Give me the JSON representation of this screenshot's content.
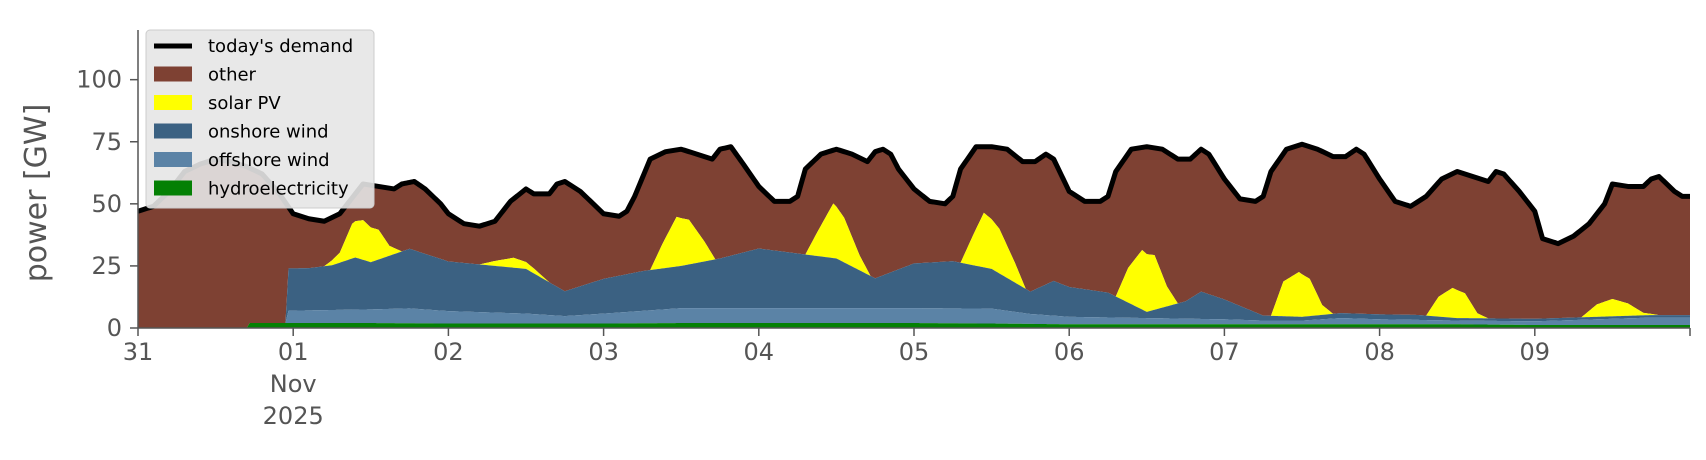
{
  "chart_data": {
    "type": "area",
    "stacked": true,
    "ylabel": "power [GW]",
    "xlabel": "",
    "ylim": [
      0,
      120
    ],
    "yticks": [
      0,
      25,
      50,
      75,
      100
    ],
    "xlim": [
      0,
      10
    ],
    "x_tick_positions": [
      0,
      1,
      2,
      3,
      4,
      5,
      6,
      7,
      8,
      9
    ],
    "x_tick_labels": [
      "31",
      "01",
      "02",
      "03",
      "04",
      "05",
      "06",
      "07",
      "08",
      "09"
    ],
    "x_secondary_labels": {
      "position": 1,
      "lines": [
        "Nov",
        "2025"
      ]
    },
    "x_units": "days since 31 Oct 2025",
    "grid": false,
    "legend_position": "top-left",
    "legend": [
      "today's demand",
      "other",
      "solar PV",
      "onshore wind",
      "offshore wind",
      "hydroelectricity"
    ],
    "colors": {
      "demand": "#000000",
      "other": "#7e4133",
      "solar": "#ffff00",
      "onshore": "#3b6182",
      "offshore": "#5b83a6",
      "hydro": "#048004",
      "axis": "#555555"
    },
    "series": [
      {
        "name": "hydroelectricity",
        "color": "#048004",
        "points": [
          [
            0,
            0
          ],
          [
            0.7,
            0
          ],
          [
            0.72,
            2
          ],
          [
            1.0,
            2
          ],
          [
            1.5,
            2
          ],
          [
            2.0,
            1.8
          ],
          [
            2.5,
            1.8
          ],
          [
            3.0,
            1.8
          ],
          [
            3.5,
            2
          ],
          [
            4.0,
            2
          ],
          [
            4.5,
            2
          ],
          [
            5.0,
            2
          ],
          [
            5.5,
            1.8
          ],
          [
            6.0,
            1.5
          ],
          [
            6.5,
            1.5
          ],
          [
            7.0,
            1.5
          ],
          [
            7.5,
            1.5
          ],
          [
            8.0,
            1.5
          ],
          [
            8.5,
            1.5
          ],
          [
            9.0,
            1.2
          ],
          [
            9.5,
            1.2
          ],
          [
            9.95,
            1.2
          ]
        ]
      },
      {
        "name": "offshore wind",
        "color": "#5b83a6",
        "points": [
          [
            0,
            0
          ],
          [
            0.7,
            0
          ],
          [
            0.72,
            0
          ],
          [
            0.95,
            0
          ],
          [
            0.97,
            5
          ],
          [
            1.0,
            5
          ],
          [
            1.5,
            5.5
          ],
          [
            1.75,
            6
          ],
          [
            2.0,
            5
          ],
          [
            2.5,
            4
          ],
          [
            2.75,
            3
          ],
          [
            3.0,
            4
          ],
          [
            3.25,
            5
          ],
          [
            3.5,
            6
          ],
          [
            4.0,
            6
          ],
          [
            4.5,
            6
          ],
          [
            5.0,
            6
          ],
          [
            5.5,
            6
          ],
          [
            5.75,
            4
          ],
          [
            6.0,
            3
          ],
          [
            6.5,
            2.5
          ],
          [
            7.0,
            2
          ],
          [
            7.25,
            1.5
          ],
          [
            7.5,
            1.5
          ],
          [
            7.75,
            2.5
          ],
          [
            8.0,
            2
          ],
          [
            8.5,
            1.5
          ],
          [
            9.0,
            1.5
          ],
          [
            9.25,
            2
          ],
          [
            9.5,
            2.5
          ],
          [
            9.75,
            3
          ],
          [
            9.95,
            3
          ]
        ]
      },
      {
        "name": "onshore wind",
        "color": "#3b6182",
        "points": [
          [
            0,
            0
          ],
          [
            0.7,
            0
          ],
          [
            0.95,
            0
          ],
          [
            0.97,
            17
          ],
          [
            1.1,
            17
          ],
          [
            1.25,
            18
          ],
          [
            1.4,
            21
          ],
          [
            1.5,
            19
          ],
          [
            1.75,
            24
          ],
          [
            2.0,
            20
          ],
          [
            2.5,
            18
          ],
          [
            2.75,
            10
          ],
          [
            3.0,
            14
          ],
          [
            3.25,
            16
          ],
          [
            3.5,
            17
          ],
          [
            3.75,
            20
          ],
          [
            4.0,
            24
          ],
          [
            4.25,
            22
          ],
          [
            4.5,
            20
          ],
          [
            4.75,
            12
          ],
          [
            5.0,
            18
          ],
          [
            5.25,
            19
          ],
          [
            5.5,
            16
          ],
          [
            5.75,
            9
          ],
          [
            5.9,
            14
          ],
          [
            6.0,
            12
          ],
          [
            6.25,
            10
          ],
          [
            6.5,
            2.5
          ],
          [
            6.75,
            7
          ],
          [
            6.85,
            11
          ],
          [
            7.0,
            8
          ],
          [
            7.25,
            2
          ],
          [
            7.5,
            1.5
          ],
          [
            7.75,
            2
          ],
          [
            8.0,
            2
          ],
          [
            8.25,
            2
          ],
          [
            8.5,
            1
          ],
          [
            9.0,
            1
          ],
          [
            9.5,
            1
          ],
          [
            9.95,
            1
          ]
        ]
      },
      {
        "name": "solar PV",
        "color": "#ffff00",
        "points": [
          [
            0,
            0
          ],
          [
            1.2,
            0
          ],
          [
            1.3,
            4
          ],
          [
            1.38,
            14
          ],
          [
            1.45,
            16
          ],
          [
            1.55,
            12
          ],
          [
            1.62,
            4
          ],
          [
            1.7,
            0
          ],
          [
            2.2,
            0
          ],
          [
            2.3,
            2
          ],
          [
            2.42,
            4
          ],
          [
            2.55,
            2
          ],
          [
            2.65,
            0
          ],
          [
            3.3,
            0
          ],
          [
            3.38,
            10
          ],
          [
            3.47,
            20
          ],
          [
            3.55,
            18
          ],
          [
            3.65,
            8
          ],
          [
            3.72,
            0
          ],
          [
            4.3,
            0
          ],
          [
            4.38,
            10
          ],
          [
            4.48,
            22
          ],
          [
            4.55,
            18
          ],
          [
            4.65,
            6
          ],
          [
            4.72,
            0
          ],
          [
            5.3,
            0
          ],
          [
            5.38,
            12
          ],
          [
            5.45,
            22
          ],
          [
            5.55,
            18
          ],
          [
            5.65,
            8
          ],
          [
            5.72,
            0
          ],
          [
            6.3,
            0
          ],
          [
            6.38,
            14
          ],
          [
            6.47,
            24
          ],
          [
            6.55,
            22
          ],
          [
            6.63,
            8
          ],
          [
            6.7,
            0
          ],
          [
            7.3,
            0
          ],
          [
            7.38,
            14
          ],
          [
            7.48,
            18
          ],
          [
            7.55,
            15
          ],
          [
            7.63,
            4
          ],
          [
            7.7,
            0
          ],
          [
            8.3,
            0
          ],
          [
            8.38,
            8
          ],
          [
            8.47,
            12
          ],
          [
            8.55,
            10
          ],
          [
            8.63,
            2
          ],
          [
            8.7,
            0
          ],
          [
            9.3,
            0
          ],
          [
            9.4,
            5
          ],
          [
            9.5,
            7
          ],
          [
            9.6,
            5
          ],
          [
            9.7,
            1
          ],
          [
            9.8,
            0
          ],
          [
            9.95,
            0
          ]
        ]
      },
      {
        "name": "other",
        "color": "#7e4133",
        "fill_to": "demand"
      }
    ],
    "demand": {
      "name": "today's demand",
      "color": "#000000",
      "points": [
        [
          0,
          47
        ],
        [
          0.1,
          49
        ],
        [
          0.2,
          55
        ],
        [
          0.3,
          63
        ],
        [
          0.4,
          66
        ],
        [
          0.5,
          68
        ],
        [
          0.6,
          67
        ],
        [
          0.7,
          65
        ],
        [
          0.8,
          62
        ],
        [
          0.9,
          55
        ],
        [
          1.0,
          46
        ],
        [
          1.1,
          44
        ],
        [
          1.2,
          43
        ],
        [
          1.3,
          46
        ],
        [
          1.4,
          54
        ],
        [
          1.45,
          58
        ],
        [
          1.55,
          57
        ],
        [
          1.65,
          56
        ],
        [
          1.7,
          58
        ],
        [
          1.78,
          59
        ],
        [
          1.85,
          56
        ],
        [
          1.9,
          53
        ],
        [
          1.95,
          50
        ],
        [
          2.0,
          46
        ],
        [
          2.1,
          42
        ],
        [
          2.2,
          41
        ],
        [
          2.3,
          43
        ],
        [
          2.4,
          51
        ],
        [
          2.5,
          56
        ],
        [
          2.55,
          54
        ],
        [
          2.65,
          54
        ],
        [
          2.7,
          58
        ],
        [
          2.75,
          59
        ],
        [
          2.85,
          55
        ],
        [
          2.95,
          49
        ],
        [
          3.0,
          46
        ],
        [
          3.1,
          45
        ],
        [
          3.15,
          47
        ],
        [
          3.2,
          53
        ],
        [
          3.3,
          68
        ],
        [
          3.4,
          71
        ],
        [
          3.5,
          72
        ],
        [
          3.6,
          70
        ],
        [
          3.7,
          68
        ],
        [
          3.75,
          72
        ],
        [
          3.82,
          73
        ],
        [
          3.9,
          66
        ],
        [
          4.0,
          57
        ],
        [
          4.1,
          51
        ],
        [
          4.2,
          51
        ],
        [
          4.25,
          53
        ],
        [
          4.3,
          64
        ],
        [
          4.4,
          70
        ],
        [
          4.5,
          72
        ],
        [
          4.6,
          70
        ],
        [
          4.7,
          67
        ],
        [
          4.75,
          71
        ],
        [
          4.8,
          72
        ],
        [
          4.85,
          70
        ],
        [
          4.9,
          64
        ],
        [
          5.0,
          56
        ],
        [
          5.1,
          51
        ],
        [
          5.2,
          50
        ],
        [
          5.25,
          53
        ],
        [
          5.3,
          64
        ],
        [
          5.4,
          73
        ],
        [
          5.5,
          73
        ],
        [
          5.6,
          72
        ],
        [
          5.7,
          67
        ],
        [
          5.78,
          67
        ],
        [
          5.85,
          70
        ],
        [
          5.9,
          68
        ],
        [
          6.0,
          55
        ],
        [
          6.1,
          51
        ],
        [
          6.2,
          51
        ],
        [
          6.25,
          53
        ],
        [
          6.3,
          63
        ],
        [
          6.4,
          72
        ],
        [
          6.5,
          73
        ],
        [
          6.6,
          72
        ],
        [
          6.7,
          68
        ],
        [
          6.78,
          68
        ],
        [
          6.85,
          72
        ],
        [
          6.9,
          70
        ],
        [
          7.0,
          60
        ],
        [
          7.1,
          52
        ],
        [
          7.2,
          51
        ],
        [
          7.25,
          53
        ],
        [
          7.3,
          63
        ],
        [
          7.4,
          72
        ],
        [
          7.5,
          74
        ],
        [
          7.6,
          72
        ],
        [
          7.7,
          69
        ],
        [
          7.78,
          69
        ],
        [
          7.85,
          72
        ],
        [
          7.9,
          70
        ],
        [
          8.0,
          60
        ],
        [
          8.1,
          51
        ],
        [
          8.2,
          49
        ],
        [
          8.25,
          51
        ],
        [
          8.3,
          53
        ],
        [
          8.4,
          60
        ],
        [
          8.5,
          63
        ],
        [
          8.6,
          61
        ],
        [
          8.7,
          59
        ],
        [
          8.75,
          63
        ],
        [
          8.8,
          62
        ],
        [
          8.9,
          55
        ],
        [
          9.0,
          47
        ],
        [
          9.05,
          36
        ],
        [
          9.15,
          34
        ],
        [
          9.25,
          37
        ],
        [
          9.35,
          42
        ],
        [
          9.45,
          50
        ],
        [
          9.5,
          58
        ],
        [
          9.6,
          57
        ],
        [
          9.7,
          57
        ],
        [
          9.75,
          60
        ],
        [
          9.8,
          61
        ],
        [
          9.9,
          55
        ],
        [
          9.95,
          53
        ]
      ]
    }
  }
}
